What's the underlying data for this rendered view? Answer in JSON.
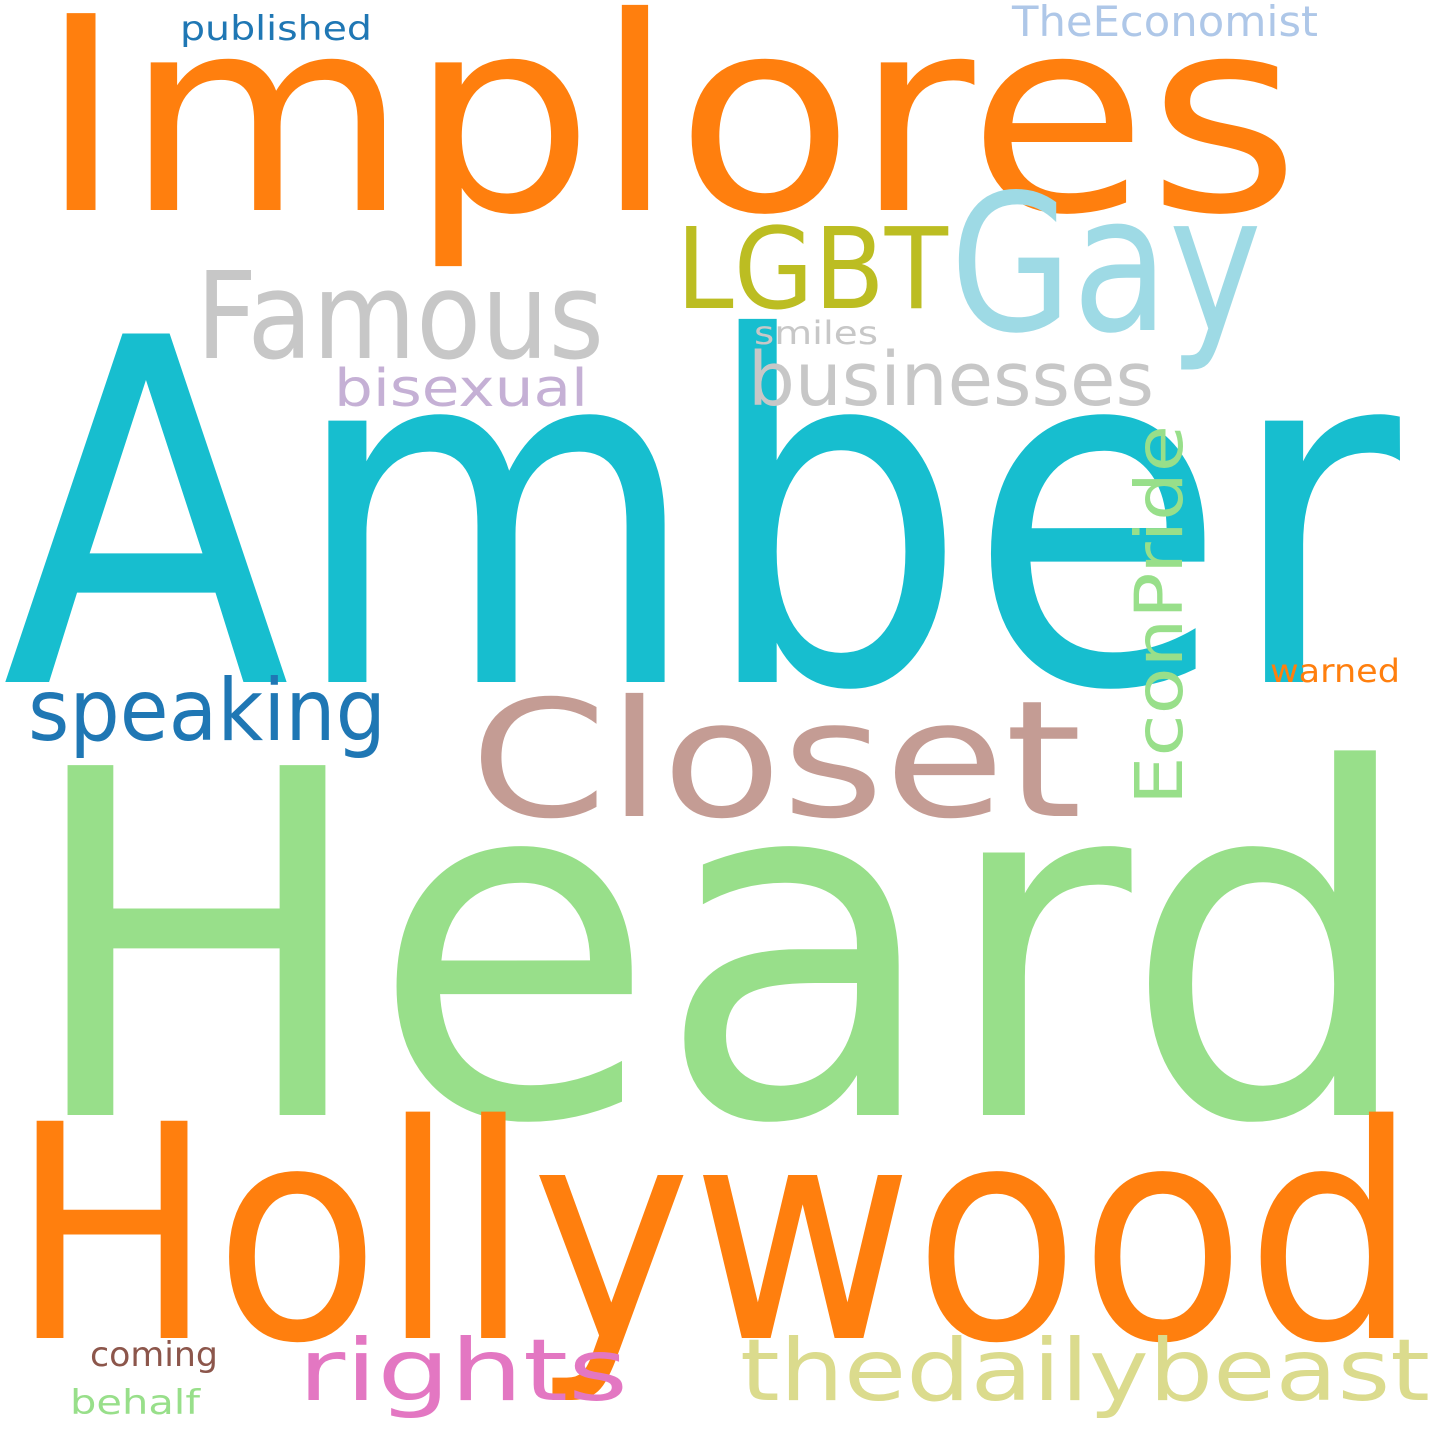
{
  "words": [
    {
      "text": "Implores",
      "color": "#ff7f0e"
    },
    {
      "text": "Amber",
      "color": "#17becf"
    },
    {
      "text": "Heard",
      "color": "#98df8a"
    },
    {
      "text": "Hollywood",
      "color": "#ff7f0e"
    },
    {
      "text": "Gay",
      "color": "#9edae5"
    },
    {
      "text": "LGBT",
      "color": "#bcbd22"
    },
    {
      "text": "Famous",
      "color": "#c7c7c7"
    },
    {
      "text": "Closet",
      "color": "#c49c94"
    },
    {
      "text": "businesses",
      "color": "#c7c7c7"
    },
    {
      "text": "EconPride",
      "color": "#98df8a"
    },
    {
      "text": "speaking",
      "color": "#1f77b4"
    },
    {
      "text": "rights",
      "color": "#e377c2"
    },
    {
      "text": "thedailybeast",
      "color": "#dbdb8d"
    },
    {
      "text": "bisexual",
      "color": "#c5b0d5"
    },
    {
      "text": "smiles",
      "color": "#c7c7c7"
    },
    {
      "text": "published",
      "color": "#1f77b4"
    },
    {
      "text": "TheEconomist",
      "color": "#aec7e8"
    },
    {
      "text": "warned",
      "color": "#ff7f0e"
    },
    {
      "text": "coming",
      "color": "#8c564b"
    },
    {
      "text": "behalf",
      "color": "#98df8a"
    }
  ]
}
